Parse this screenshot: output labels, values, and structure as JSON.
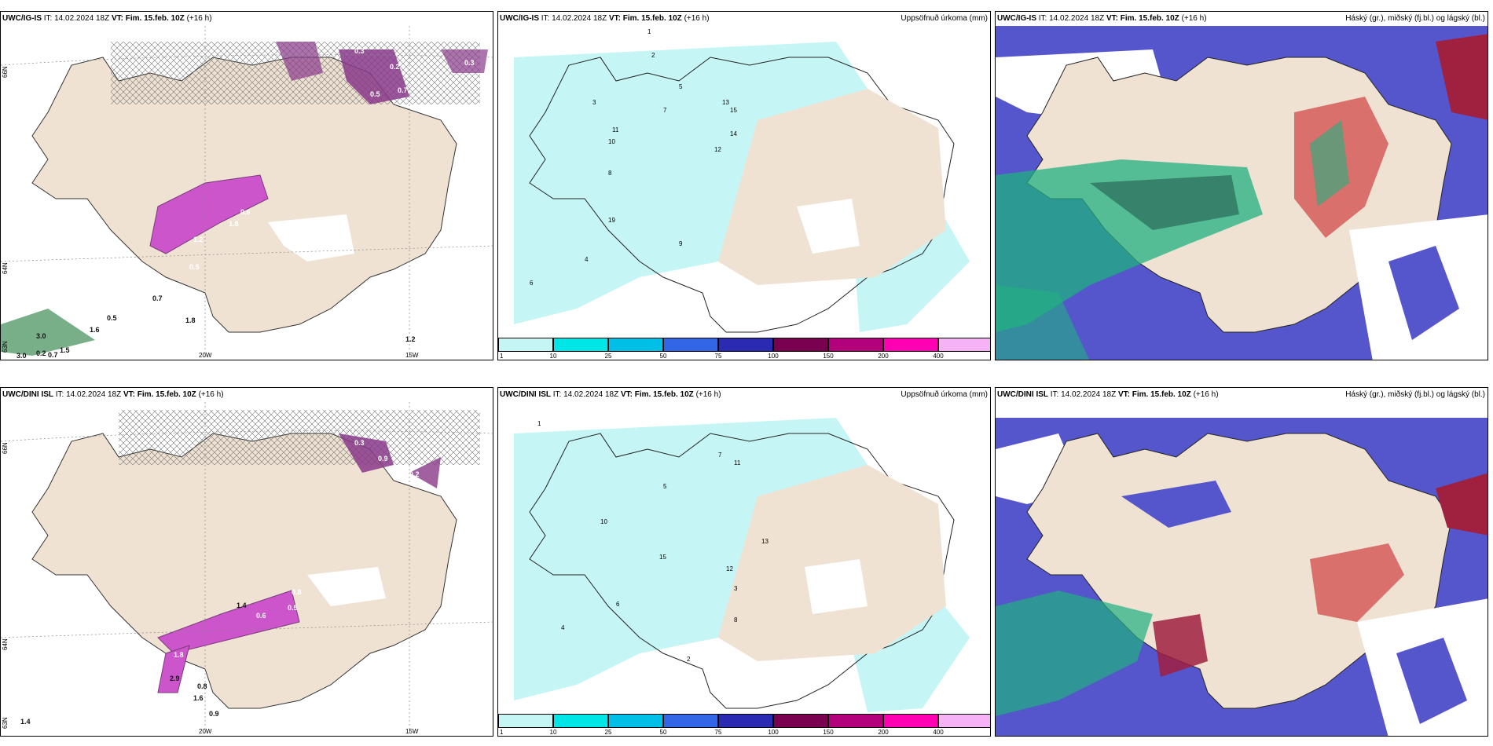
{
  "panels": [
    {
      "model": "UWC/IG-IS",
      "it_label": "IT:",
      "it_value": "14.02.2024 18Z",
      "vt_label": "VT:",
      "vt_value": "Fim. 15.feb. 10Z",
      "lead": "(+16 h)",
      "right_title": "",
      "axis_labels": [
        "66N",
        "64N",
        "63N",
        "20W",
        "15W"
      ],
      "values": [
        "0.3",
        "0.2",
        "0.3",
        "0.5",
        "0.7",
        "1.8",
        "1.2",
        "0.5",
        "0.6",
        "0.7",
        "0.5",
        "1.6",
        "3.0",
        "0.2",
        "0.7",
        "1.5",
        "1.8",
        "1.2",
        "3.0"
      ]
    },
    {
      "model": "UWC/IG-IS",
      "it_label": "IT:",
      "it_value": "14.02.2024 18Z",
      "vt_label": "VT:",
      "vt_value": "Fim. 15.feb. 10Z",
      "lead": "(+16 h)",
      "right_title": "Uppsöfnuð úrkoma (mm)",
      "colorbar": [
        "1",
        "10",
        "25",
        "50",
        "75",
        "100",
        "150",
        "200",
        "400"
      ],
      "colorbar_colors": [
        "#c6f5f5",
        "#00e6e6",
        "#00bfe6",
        "#3366e6",
        "#2a2ab3",
        "#7a0050",
        "#b3007a",
        "#ff00b3",
        "#f5b3f5"
      ],
      "values": [
        "1",
        "2",
        "3",
        "5",
        "7",
        "10",
        "11",
        "12",
        "13",
        "14",
        "15",
        "19",
        "6",
        "4",
        "8",
        "9"
      ]
    },
    {
      "model": "UWC/IG-IS",
      "it_label": "IT:",
      "it_value": "14.02.2024 18Z",
      "vt_label": "VT:",
      "vt_value": "Fim. 15.feb. 10Z",
      "lead": "(+16 h)",
      "right_title": "Háský (gr.), miðský (fj.bl.) og lágský (bl.)"
    },
    {
      "model": "UWC/DINI ISL",
      "it_label": "IT:",
      "it_value": "14.02.2024 18Z",
      "vt_label": "VT:",
      "vt_value": "Fim. 15.feb. 10Z",
      "lead": "(+16 h)",
      "right_title": "",
      "axis_labels": [
        "66N",
        "64N",
        "63N",
        "20W",
        "15W"
      ],
      "values": [
        "0.3",
        "0.9",
        "0.2",
        "0.6",
        "0.8",
        "0.5",
        "1.8",
        "1.4",
        "2.9",
        "0.8",
        "1.6",
        "0.9",
        "1.4"
      ]
    },
    {
      "model": "UWC/DINI ISL",
      "it_label": "IT:",
      "it_value": "14.02.2024 18Z",
      "vt_label": "VT:",
      "vt_value": "Fim. 15.feb. 10Z",
      "lead": "(+16 h)",
      "right_title": "Uppsöfnuð úrkoma (mm)",
      "colorbar": [
        "1",
        "10",
        "25",
        "50",
        "75",
        "100",
        "150",
        "200",
        "400"
      ],
      "colorbar_colors": [
        "#c6f5f5",
        "#00e6e6",
        "#00bfe6",
        "#3366e6",
        "#2a2ab3",
        "#7a0050",
        "#b3007a",
        "#ff00b3",
        "#f5b3f5"
      ],
      "values": [
        "1",
        "2",
        "3",
        "5",
        "7",
        "8",
        "10",
        "11",
        "12",
        "13",
        "15",
        "4",
        "6"
      ]
    },
    {
      "model": "UWC/DINI ISL",
      "it_label": "IT:",
      "it_value": "14.02.2024 18Z",
      "vt_label": "VT:",
      "vt_value": "Fim. 15.feb. 10Z",
      "lead": "(+16 h)",
      "right_title": "Háský (gr.), miðský (fj.bl.) og lágský (bl.)"
    }
  ],
  "colors": {
    "land": "#efe2d3",
    "precip_light": "#c6f5f5",
    "snow_purple": "#cc55cc",
    "snow_dark": "#7a3a7a",
    "high_cloud_green": "#20b080",
    "mid_cloud_red": "#d04040",
    "low_cloud_blue": "#5555cc"
  }
}
